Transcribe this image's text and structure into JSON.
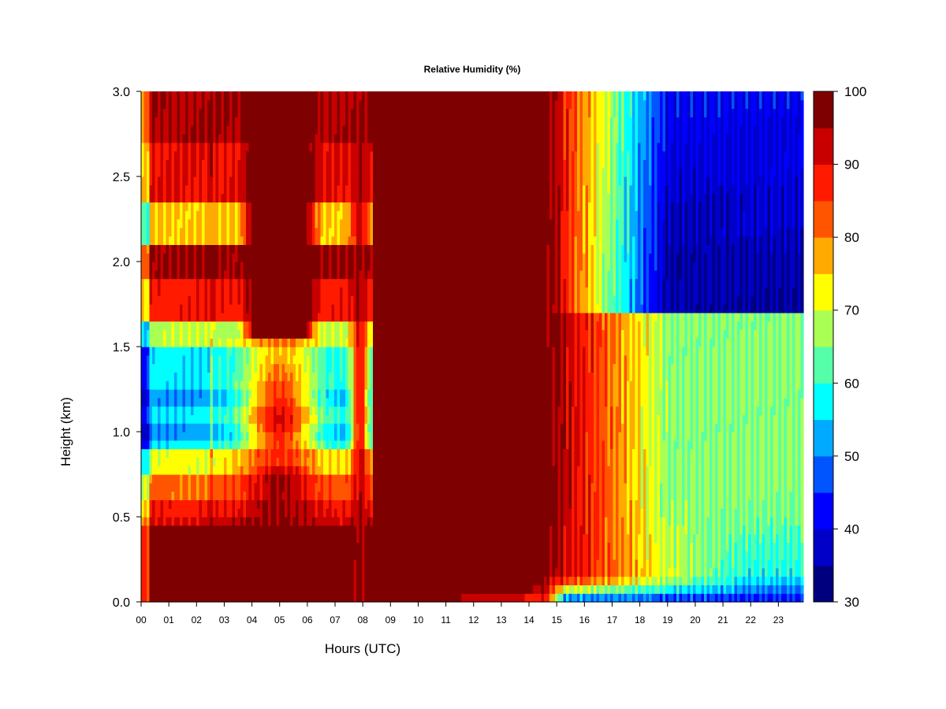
{
  "chart_data": {
    "type": "heatmap",
    "title": "Relative Humidity (%)",
    "xlabel": "Hours (UTC)",
    "ylabel": "Height (km)",
    "x_ticks": [
      "00",
      "01",
      "02",
      "03",
      "04",
      "05",
      "06",
      "07",
      "08",
      "09",
      "10",
      "11",
      "12",
      "13",
      "14",
      "15",
      "16",
      "17",
      "18",
      "19",
      "20",
      "21",
      "22",
      "23"
    ],
    "y_ticks": [
      "0.0",
      "0.5",
      "1.0",
      "1.5",
      "2.0",
      "2.5",
      "3.0"
    ],
    "xlim": [
      0,
      23.9
    ],
    "ylim": [
      0,
      3.0
    ],
    "colorbar": {
      "levels": [
        30,
        35,
        40,
        45,
        50,
        55,
        60,
        65,
        70,
        75,
        80,
        85,
        90,
        95,
        100
      ],
      "tick_labels": [
        "30",
        "40",
        "50",
        "60",
        "70",
        "80",
        "90",
        "100"
      ],
      "colors": [
        "#00007f",
        "#0000c8",
        "#0000ff",
        "#0055ff",
        "#00aaff",
        "#00ffff",
        "#55ffaa",
        "#aaff55",
        "#ffff00",
        "#ffaa00",
        "#ff5500",
        "#ff1a00",
        "#c80000",
        "#7f0000"
      ]
    },
    "grid": false
  }
}
